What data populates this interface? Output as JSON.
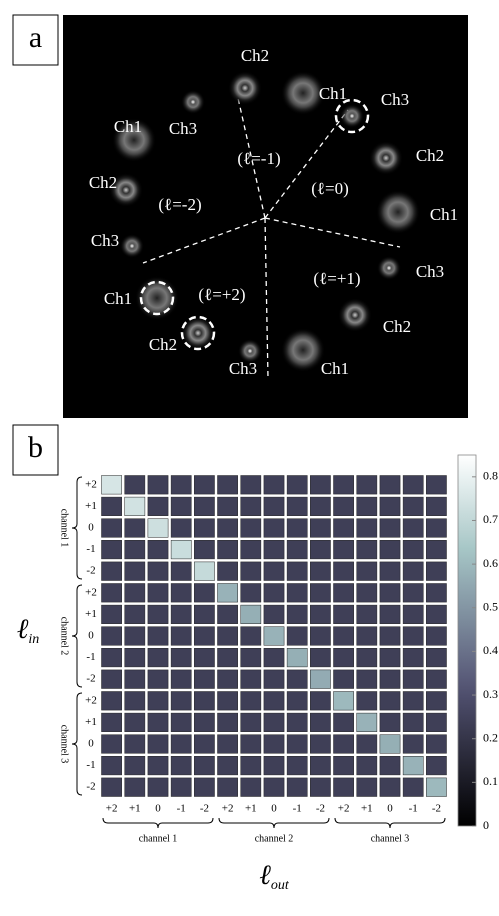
{
  "panel_a": {
    "label": "a",
    "annotations": [
      "Ch3",
      "Ch2",
      "Ch1",
      "Ch3",
      "Ch2",
      "Ch1",
      "Ch3",
      "Ch2",
      "Ch1",
      "Ch3",
      "Ch2",
      "Ch1",
      "Ch3",
      "Ch2",
      "Ch1"
    ],
    "modes": [
      "(ℓ=-1)",
      "(ℓ=0)",
      "(ℓ=+1)",
      "(ℓ=+2)",
      "(ℓ=-2)"
    ]
  },
  "chart_data": {
    "type": "heatmap",
    "panel_label": "b",
    "xlabel": "ℓ",
    "xlabel_sub": "out",
    "ylabel": "ℓ",
    "ylabel_sub": "in",
    "x_categories": [
      "+2",
      "+1",
      "0",
      "-1",
      "-2",
      "+2",
      "+1",
      "0",
      "-1",
      "-2",
      "+2",
      "+1",
      "0",
      "-1",
      "-2"
    ],
    "y_categories": [
      "+2",
      "+1",
      "0",
      "-1",
      "-2",
      "+2",
      "+1",
      "0",
      "-1",
      "-2",
      "+2",
      "+1",
      "0",
      "-1",
      "-2"
    ],
    "x_groups": [
      "channel 1",
      "channel 2",
      "channel 3"
    ],
    "y_groups": [
      "channel 1",
      "channel 2",
      "channel 3"
    ],
    "values": [
      [
        0.75,
        0.24,
        0.24,
        0.24,
        0.24,
        0.24,
        0.24,
        0.24,
        0.24,
        0.24,
        0.24,
        0.24,
        0.24,
        0.24,
        0.24
      ],
      [
        0.24,
        0.74,
        0.24,
        0.24,
        0.24,
        0.24,
        0.24,
        0.24,
        0.24,
        0.24,
        0.24,
        0.24,
        0.24,
        0.24,
        0.24
      ],
      [
        0.24,
        0.24,
        0.73,
        0.24,
        0.24,
        0.24,
        0.24,
        0.24,
        0.24,
        0.24,
        0.24,
        0.24,
        0.24,
        0.24,
        0.24
      ],
      [
        0.24,
        0.24,
        0.24,
        0.72,
        0.24,
        0.24,
        0.24,
        0.24,
        0.24,
        0.24,
        0.24,
        0.24,
        0.24,
        0.24,
        0.24
      ],
      [
        0.24,
        0.24,
        0.24,
        0.24,
        0.71,
        0.24,
        0.24,
        0.24,
        0.24,
        0.24,
        0.24,
        0.24,
        0.24,
        0.24,
        0.24
      ],
      [
        0.24,
        0.24,
        0.24,
        0.24,
        0.24,
        0.58,
        0.24,
        0.24,
        0.24,
        0.24,
        0.24,
        0.24,
        0.24,
        0.24,
        0.24
      ],
      [
        0.24,
        0.24,
        0.24,
        0.24,
        0.24,
        0.24,
        0.57,
        0.24,
        0.24,
        0.24,
        0.24,
        0.24,
        0.24,
        0.24,
        0.24
      ],
      [
        0.24,
        0.24,
        0.24,
        0.24,
        0.24,
        0.24,
        0.24,
        0.58,
        0.24,
        0.24,
        0.24,
        0.24,
        0.24,
        0.24,
        0.24
      ],
      [
        0.24,
        0.24,
        0.24,
        0.24,
        0.24,
        0.24,
        0.24,
        0.24,
        0.57,
        0.24,
        0.24,
        0.24,
        0.24,
        0.24,
        0.24
      ],
      [
        0.24,
        0.24,
        0.24,
        0.24,
        0.24,
        0.24,
        0.24,
        0.24,
        0.24,
        0.56,
        0.24,
        0.24,
        0.24,
        0.24,
        0.24
      ],
      [
        0.24,
        0.24,
        0.24,
        0.24,
        0.24,
        0.24,
        0.24,
        0.24,
        0.24,
        0.24,
        0.6,
        0.24,
        0.24,
        0.24,
        0.24
      ],
      [
        0.24,
        0.24,
        0.24,
        0.24,
        0.24,
        0.24,
        0.24,
        0.24,
        0.24,
        0.24,
        0.24,
        0.58,
        0.24,
        0.24,
        0.24
      ],
      [
        0.24,
        0.24,
        0.24,
        0.24,
        0.24,
        0.24,
        0.24,
        0.24,
        0.24,
        0.24,
        0.24,
        0.24,
        0.57,
        0.24,
        0.24
      ],
      [
        0.24,
        0.24,
        0.24,
        0.24,
        0.24,
        0.24,
        0.24,
        0.24,
        0.24,
        0.24,
        0.24,
        0.24,
        0.24,
        0.58,
        0.24
      ],
      [
        0.24,
        0.24,
        0.24,
        0.24,
        0.24,
        0.24,
        0.24,
        0.24,
        0.24,
        0.24,
        0.24,
        0.24,
        0.24,
        0.24,
        0.6
      ]
    ],
    "colormap": "bone",
    "zlim": [
      0,
      0.85
    ],
    "zticks": [
      0,
      0.1,
      0.2,
      0.3,
      0.4,
      0.5,
      0.6,
      0.7,
      0.8
    ]
  }
}
